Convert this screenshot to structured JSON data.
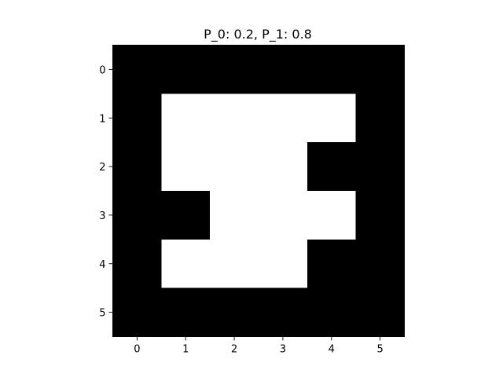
{
  "chart_data": {
    "type": "heatmap",
    "title": "P_0: 0.2, P_1: 0.8",
    "xlabel": "",
    "ylabel": "",
    "x_ticks": [
      "0",
      "1",
      "2",
      "3",
      "4",
      "5"
    ],
    "y_ticks": [
      "0",
      "1",
      "2",
      "3",
      "4",
      "5"
    ],
    "xlim": [
      -0.5,
      5.5
    ],
    "ylim": [
      5.5,
      -0.5
    ],
    "grid": false,
    "colormap": {
      "0": "#000000",
      "1": "#ffffff"
    },
    "values": [
      [
        0,
        0,
        0,
        0,
        0,
        0
      ],
      [
        0,
        1,
        1,
        1,
        1,
        0
      ],
      [
        0,
        1,
        1,
        1,
        0,
        0
      ],
      [
        0,
        0,
        1,
        1,
        1,
        0
      ],
      [
        0,
        1,
        1,
        1,
        0,
        0
      ],
      [
        0,
        0,
        0,
        0,
        0,
        0
      ]
    ]
  }
}
